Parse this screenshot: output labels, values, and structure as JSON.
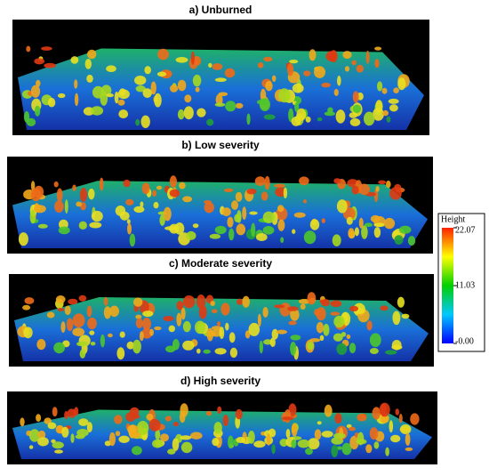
{
  "panels": [
    {
      "title": "a) Unburned"
    },
    {
      "title": "b) Low severity"
    },
    {
      "title": "c) Moderate severity"
    },
    {
      "title": "d) High severity"
    }
  ],
  "colorbar": {
    "title": "Height",
    "lim": [
      0,
      22.07
    ],
    "ticks": [
      {
        "value": 0,
        "label": "-0.00"
      },
      11.03,
      22.07
    ]
  }
}
